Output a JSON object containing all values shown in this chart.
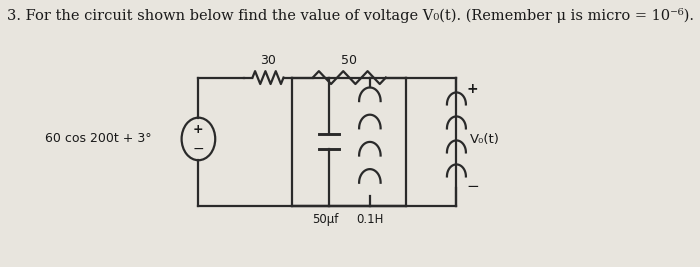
{
  "background_color": "#e8e5de",
  "title_text": "3. For the circuit shown below find the value of voltage V₀(t). (Remember μ is micro = 10⁻⁶).",
  "title_fontsize": 10.5,
  "source_label": "60 cos 200t + 3°",
  "r1_label": "30",
  "r2_label": "50",
  "cap_label": "50μf",
  "ind_label": "0.1H",
  "vo_label": "V₀(t)",
  "line_color": "#2a2a2a",
  "text_color": "#1a1a1a",
  "lw": 1.6
}
